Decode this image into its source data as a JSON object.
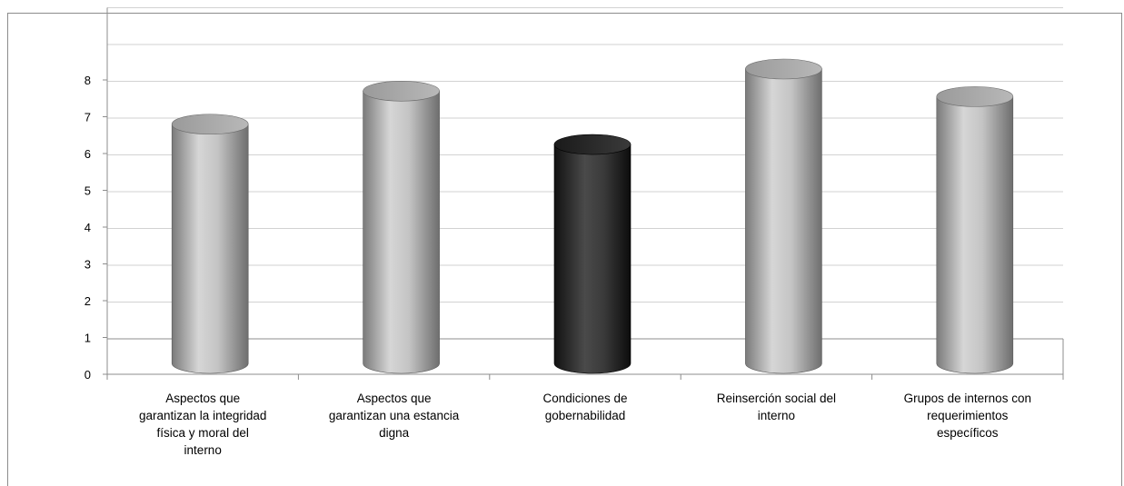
{
  "chart_data": {
    "type": "bar",
    "style": "3d-cylinder",
    "categories": [
      [
        "Aspectos que",
        "garantizan la integridad",
        "física y moral del",
        "interno"
      ],
      [
        "Aspectos que",
        "garantizan una estancia",
        "digna"
      ],
      [
        "Condiciones de",
        "gobernabilidad"
      ],
      [
        "Reinserción social del",
        "interno"
      ],
      [
        "Grupos de internos con",
        "requerimientos",
        "específicos"
      ]
    ],
    "values": [
      6.5,
      7.4,
      5.95,
      8.0,
      7.25
    ],
    "colors": [
      "#b4b4b4",
      "#b4b4b4",
      "#2a2a2a",
      "#b4b4b4",
      "#b4b4b4"
    ],
    "ylim": [
      0,
      9
    ],
    "yticks": [
      "0",
      "1",
      "2",
      "3",
      "4",
      "5",
      "6",
      "7",
      "8"
    ],
    "grid": true,
    "legend": "none"
  }
}
